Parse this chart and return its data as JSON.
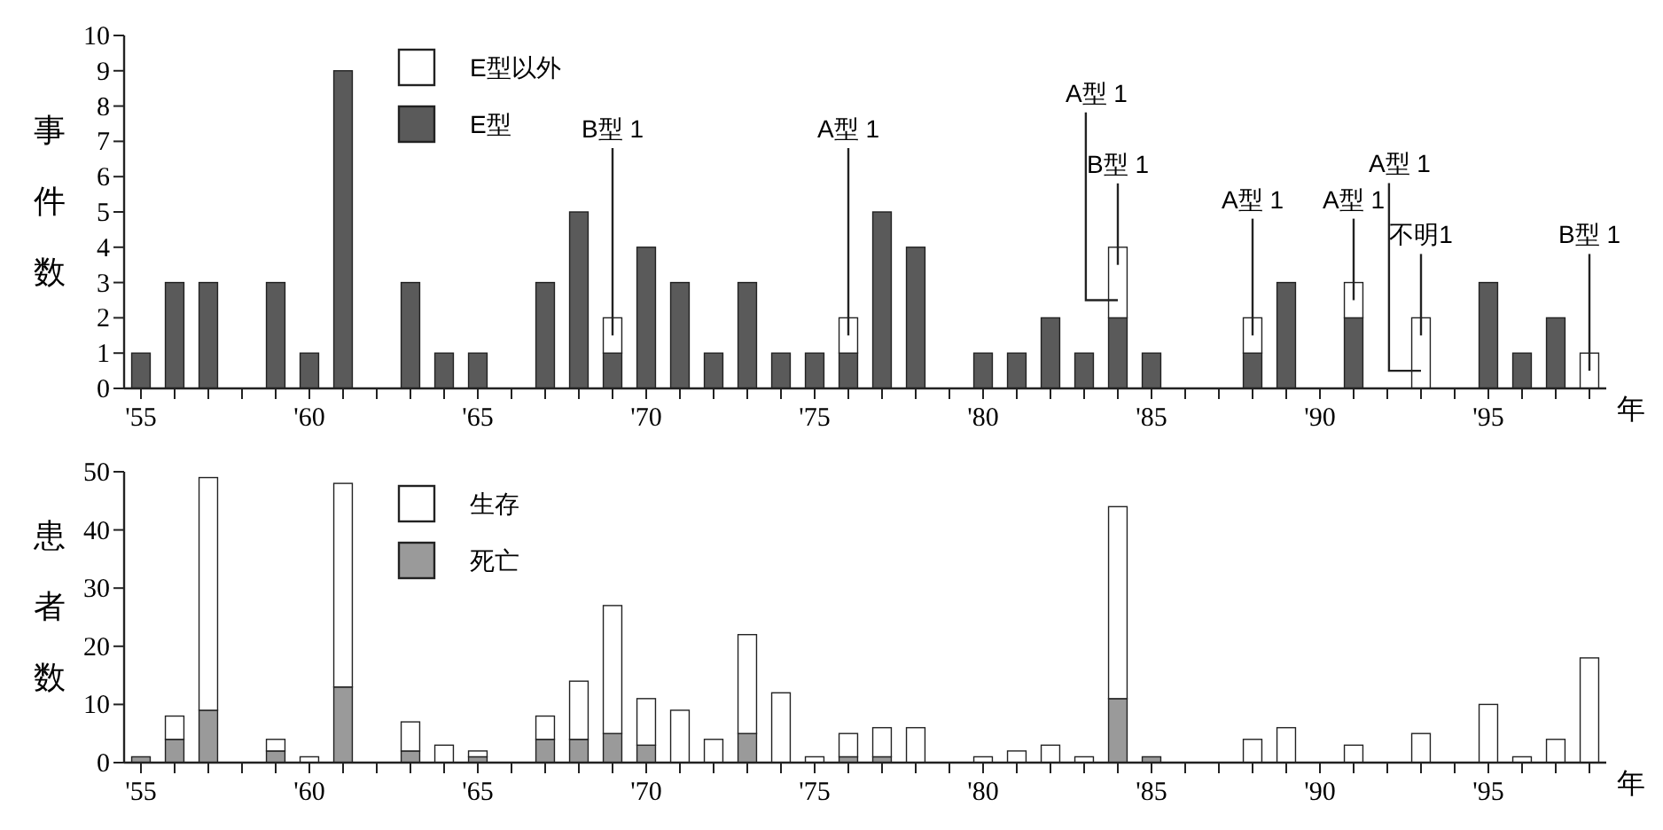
{
  "chart_data": [
    {
      "type": "bar",
      "stacked": true,
      "ylabel": "事件数",
      "xlabel": "年",
      "legend": "top left",
      "grid": false,
      "x": [
        1955,
        1956,
        1957,
        1958,
        1959,
        1960,
        1961,
        1962,
        1963,
        1964,
        1965,
        1966,
        1967,
        1968,
        1969,
        1970,
        1971,
        1972,
        1973,
        1974,
        1975,
        1976,
        1977,
        1978,
        1979,
        1980,
        1981,
        1982,
        1983,
        1984,
        1985,
        1986,
        1987,
        1988,
        1989,
        1990,
        1991,
        1992,
        1993,
        1994,
        1995,
        1996,
        1997,
        1998
      ],
      "xlim": [
        1954.5,
        1998.5
      ],
      "xticks": [
        {
          "value": 1955,
          "label": "'55"
        },
        {
          "value": 1956,
          "label": null
        },
        {
          "value": 1957,
          "label": null
        },
        {
          "value": 1958,
          "label": null
        },
        {
          "value": 1959,
          "label": null
        },
        {
          "value": 1960,
          "label": "'60"
        },
        {
          "value": 1961,
          "label": null
        },
        {
          "value": 1962,
          "label": null
        },
        {
          "value": 1963,
          "label": null
        },
        {
          "value": 1964,
          "label": null
        },
        {
          "value": 1965,
          "label": "'65"
        },
        {
          "value": 1966,
          "label": null
        },
        {
          "value": 1967,
          "label": null
        },
        {
          "value": 1968,
          "label": null
        },
        {
          "value": 1969,
          "label": null
        },
        {
          "value": 1970,
          "label": "'70"
        },
        {
          "value": 1971,
          "label": null
        },
        {
          "value": 1972,
          "label": null
        },
        {
          "value": 1973,
          "label": null
        },
        {
          "value": 1974,
          "label": null
        },
        {
          "value": 1975,
          "label": "'75"
        },
        {
          "value": 1976,
          "label": null
        },
        {
          "value": 1977,
          "label": null
        },
        {
          "value": 1978,
          "label": null
        },
        {
          "value": 1979,
          "label": null
        },
        {
          "value": 1980,
          "label": "'80"
        },
        {
          "value": 1981,
          "label": null
        },
        {
          "value": 1982,
          "label": null
        },
        {
          "value": 1983,
          "label": null
        },
        {
          "value": 1984,
          "label": null
        },
        {
          "value": 1985,
          "label": "'85"
        },
        {
          "value": 1986,
          "label": null
        },
        {
          "value": 1987,
          "label": null
        },
        {
          "value": 1988,
          "label": null
        },
        {
          "value": 1989,
          "label": null
        },
        {
          "value": 1990,
          "label": "'90"
        },
        {
          "value": 1991,
          "label": null
        },
        {
          "value": 1992,
          "label": null
        },
        {
          "value": 1993,
          "label": null
        },
        {
          "value": 1994,
          "label": null
        },
        {
          "value": 1995,
          "label": "'95"
        },
        {
          "value": 1996,
          "label": null
        },
        {
          "value": 1997,
          "label": null
        },
        {
          "value": 1998,
          "label": null
        }
      ],
      "ylim": [
        0,
        10
      ],
      "yticks": [
        0,
        1,
        2,
        3,
        4,
        5,
        6,
        7,
        8,
        9,
        10
      ],
      "series": [
        {
          "name": "E型",
          "color": "#5a5a5a",
          "values": [
            1,
            3,
            3,
            0,
            3,
            1,
            9,
            0,
            3,
            1,
            1,
            0,
            3,
            5,
            1,
            4,
            3,
            1,
            3,
            1,
            1,
            1,
            5,
            4,
            0,
            1,
            1,
            2,
            1,
            2,
            1,
            0,
            0,
            1,
            3,
            0,
            2,
            0,
            0,
            0,
            3,
            1,
            2,
            0
          ]
        },
        {
          "name": "E型以外",
          "color": "#ffffff",
          "values": [
            0,
            0,
            0,
            0,
            0,
            0,
            0,
            0,
            0,
            0,
            0,
            0,
            0,
            0,
            1,
            0,
            0,
            0,
            0,
            0,
            0,
            1,
            0,
            0,
            0,
            0,
            0,
            0,
            0,
            2,
            0,
            0,
            0,
            1,
            0,
            0,
            1,
            0,
            2,
            0,
            0,
            0,
            0,
            1
          ]
        }
      ],
      "annotations": [
        {
          "text": "B型 1",
          "x": 1969,
          "y": 1.5
        },
        {
          "text": "A型 1",
          "x": 1976,
          "y": 1.5
        },
        {
          "text": "B型 1",
          "x": 1984,
          "y": 3.5
        },
        {
          "text": "A型 1",
          "x": 1984,
          "y": 2.5
        },
        {
          "text": "A型 1",
          "x": 1988,
          "y": 1.5
        },
        {
          "text": "A型 1",
          "x": 1991,
          "y": 2.5
        },
        {
          "text": "不明1",
          "x": 1993,
          "y": 1.5
        },
        {
          "text": "A型 1",
          "x": 1993,
          "y": 0.5
        },
        {
          "text": "B型 1",
          "x": 1998,
          "y": 0.5
        }
      ]
    },
    {
      "type": "bar",
      "stacked": true,
      "ylabel": "患者数",
      "xlabel": "年",
      "legend": "top left",
      "grid": false,
      "x": [
        1955,
        1956,
        1957,
        1958,
        1959,
        1960,
        1961,
        1962,
        1963,
        1964,
        1965,
        1966,
        1967,
        1968,
        1969,
        1970,
        1971,
        1972,
        1973,
        1974,
        1975,
        1976,
        1977,
        1978,
        1979,
        1980,
        1981,
        1982,
        1983,
        1984,
        1985,
        1986,
        1987,
        1988,
        1989,
        1990,
        1991,
        1992,
        1993,
        1994,
        1995,
        1996,
        1997,
        1998
      ],
      "xlim": [
        1954.5,
        1998.5
      ],
      "xticks": [
        {
          "value": 1955,
          "label": "'55"
        },
        {
          "value": 1956,
          "label": null
        },
        {
          "value": 1957,
          "label": null
        },
        {
          "value": 1958,
          "label": null
        },
        {
          "value": 1959,
          "label": null
        },
        {
          "value": 1960,
          "label": "'60"
        },
        {
          "value": 1961,
          "label": null
        },
        {
          "value": 1962,
          "label": null
        },
        {
          "value": 1963,
          "label": null
        },
        {
          "value": 1964,
          "label": null
        },
        {
          "value": 1965,
          "label": "'65"
        },
        {
          "value": 1966,
          "label": null
        },
        {
          "value": 1967,
          "label": null
        },
        {
          "value": 1968,
          "label": null
        },
        {
          "value": 1969,
          "label": null
        },
        {
          "value": 1970,
          "label": "'70"
        },
        {
          "value": 1971,
          "label": null
        },
        {
          "value": 1972,
          "label": null
        },
        {
          "value": 1973,
          "label": null
        },
        {
          "value": 1974,
          "label": null
        },
        {
          "value": 1975,
          "label": "'75"
        },
        {
          "value": 1976,
          "label": null
        },
        {
          "value": 1977,
          "label": null
        },
        {
          "value": 1978,
          "label": null
        },
        {
          "value": 1979,
          "label": null
        },
        {
          "value": 1980,
          "label": "'80"
        },
        {
          "value": 1981,
          "label": null
        },
        {
          "value": 1982,
          "label": null
        },
        {
          "value": 1983,
          "label": null
        },
        {
          "value": 1984,
          "label": null
        },
        {
          "value": 1985,
          "label": "'85"
        },
        {
          "value": 1986,
          "label": null
        },
        {
          "value": 1987,
          "label": null
        },
        {
          "value": 1988,
          "label": null
        },
        {
          "value": 1989,
          "label": null
        },
        {
          "value": 1990,
          "label": "'90"
        },
        {
          "value": 1991,
          "label": null
        },
        {
          "value": 1992,
          "label": null
        },
        {
          "value": 1993,
          "label": null
        },
        {
          "value": 1994,
          "label": null
        },
        {
          "value": 1995,
          "label": "'95"
        },
        {
          "value": 1996,
          "label": null
        },
        {
          "value": 1997,
          "label": null
        },
        {
          "value": 1998,
          "label": null
        }
      ],
      "ylim": [
        0,
        50
      ],
      "yticks": [
        0,
        10,
        20,
        30,
        40,
        50
      ],
      "series": [
        {
          "name": "死亡",
          "color": "#9a9a9a",
          "values": [
            1,
            4,
            9,
            0,
            2,
            0,
            13,
            0,
            2,
            0,
            1,
            0,
            4,
            4,
            5,
            3,
            0,
            0,
            5,
            0,
            0,
            1,
            1,
            0,
            0,
            0,
            0,
            0,
            0,
            11,
            1,
            0,
            0,
            0,
            0,
            0,
            0,
            0,
            0,
            0,
            0,
            0,
            0,
            0
          ]
        },
        {
          "name": "生存",
          "color": "#ffffff",
          "values": [
            0,
            4,
            40,
            0,
            2,
            1,
            35,
            0,
            5,
            3,
            1,
            0,
            4,
            10,
            22,
            8,
            9,
            4,
            17,
            12,
            1,
            4,
            5,
            6,
            0,
            1,
            2,
            3,
            1,
            33,
            0,
            0,
            0,
            4,
            6,
            0,
            3,
            0,
            5,
            0,
            10,
            1,
            4,
            18
          ]
        }
      ]
    }
  ]
}
